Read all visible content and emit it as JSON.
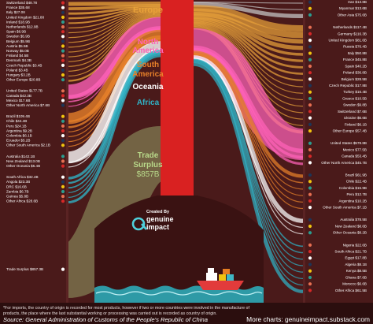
{
  "chart_data": {
    "type": "sankey",
    "title": "Trade Surplus $857B",
    "unit": "$B",
    "surplus": {
      "label_line1": "Trade",
      "label_line2": "Surplus",
      "label_line3": "$857B",
      "value": 857.3
    },
    "brand": {
      "line1": "Created By",
      "line2": "genuine",
      "line3": "impact"
    },
    "regions": [
      {
        "name": "Europe",
        "color": "#e8a13a"
      },
      {
        "name": "North America",
        "color": "#ff62b8"
      },
      {
        "name": "South America",
        "color": "#e8812a"
      },
      {
        "name": "Oceania",
        "color": "#ffffff"
      },
      {
        "name": "Africa",
        "color": "#2fb3c6"
      }
    ],
    "imports": [
      {
        "country": "Switzerland",
        "value": "$48.78",
        "region": 0
      },
      {
        "country": "France",
        "value": "$35.68",
        "region": 0
      },
      {
        "country": "Italy",
        "value": "$27.08",
        "region": 0
      },
      {
        "country": "United Kingdom",
        "value": "$21.88",
        "region": 0
      },
      {
        "country": "Ireland",
        "value": "$18.9B",
        "region": 0
      },
      {
        "country": "Netherlands",
        "value": "$12.9B",
        "region": 0
      },
      {
        "country": "Spain",
        "value": "$6.9B",
        "region": 0
      },
      {
        "country": "Sweden",
        "value": "$5.9B",
        "region": 0
      },
      {
        "country": "Belgium",
        "value": "$5.9B",
        "region": 0
      },
      {
        "country": "Austria",
        "value": "$5.5B",
        "region": 0
      },
      {
        "country": "Norway",
        "value": "$5.0B",
        "region": 0
      },
      {
        "country": "Finland",
        "value": "$4.5B",
        "region": 0
      },
      {
        "country": "Denmark",
        "value": "$4.3B",
        "region": 0
      },
      {
        "country": "Czech Republic",
        "value": "$3.4B",
        "region": 0
      },
      {
        "country": "Poland",
        "value": "$3.4B",
        "region": 0
      },
      {
        "country": "Hungary",
        "value": "$3.2B",
        "region": 0
      },
      {
        "country": "Other Europe",
        "value": "$20.8B",
        "region": 0
      },
      {
        "country": "United States",
        "value": "$177.7B",
        "region": 1
      },
      {
        "country": "Canada",
        "value": "$42.3B",
        "region": 1
      },
      {
        "country": "Mexico",
        "value": "$17.6B",
        "region": 1
      },
      {
        "country": "Other North America",
        "value": "$7.6B",
        "region": 1
      },
      {
        "country": "Brazil",
        "value": "$109.4B",
        "region": 2
      },
      {
        "country": "Chile",
        "value": "$44.4B",
        "region": 2
      },
      {
        "country": "Peru",
        "value": "$24.1B",
        "region": 2
      },
      {
        "country": "Argentina",
        "value": "$9.2B",
        "region": 2
      },
      {
        "country": "Colombia",
        "value": "$6.1B",
        "region": 2
      },
      {
        "country": "Ecuador",
        "value": "$5.2B",
        "region": 2
      },
      {
        "country": "Other South America",
        "value": "$2.1B",
        "region": 2
      },
      {
        "country": "Australia",
        "value": "$142.1B",
        "region": 3
      },
      {
        "country": "New Zealand",
        "value": "$13.0B",
        "region": 3
      },
      {
        "country": "Other Oceania",
        "value": "$5.4B",
        "region": 3
      },
      {
        "country": "South Africa",
        "value": "$32.4B",
        "region": 4
      },
      {
        "country": "Angola",
        "value": "$23.3B",
        "region": 4
      },
      {
        "country": "DRC",
        "value": "$16.6B",
        "region": 4
      },
      {
        "country": "Zambia",
        "value": "$6.7B",
        "region": 4
      },
      {
        "country": "Guinea",
        "value": "$5.8B",
        "region": 4
      },
      {
        "country": "Other Africa",
        "value": "$28.6B",
        "region": 4
      },
      {
        "country": "Trade Surplus",
        "value": "$857.3B",
        "region": -1
      }
    ],
    "exports": [
      {
        "country": "Iran",
        "value": "$13.8B",
        "region": -2
      },
      {
        "country": "Myanmar",
        "value": "$13.6B",
        "region": -2
      },
      {
        "country": "Other Asia",
        "value": "$75.6B",
        "region": -2
      },
      {
        "country": "Netherlands",
        "value": "$117.4B",
        "region": 0
      },
      {
        "country": "Germany",
        "value": "$116.3B",
        "region": 0
      },
      {
        "country": "United Kingdom",
        "value": "$81.6B",
        "region": 0
      },
      {
        "country": "Russia",
        "value": "$76.4B",
        "region": 0
      },
      {
        "country": "Italy",
        "value": "$50.8B",
        "region": 0
      },
      {
        "country": "France",
        "value": "$45.8B",
        "region": 0
      },
      {
        "country": "Spain",
        "value": "$40.2B",
        "region": 0
      },
      {
        "country": "Poland",
        "value": "$36.8B",
        "region": 0
      },
      {
        "country": "Belgium",
        "value": "$28.5B",
        "region": 0
      },
      {
        "country": "Czech Republic",
        "value": "$17.8B",
        "region": 0
      },
      {
        "country": "Turkey",
        "value": "$16.4B",
        "region": 0
      },
      {
        "country": "Greece",
        "value": "$10.5B",
        "region": 0
      },
      {
        "country": "Sweden",
        "value": "$9.8B",
        "region": 0
      },
      {
        "country": "Switzerland",
        "value": "$7.6B",
        "region": 0
      },
      {
        "country": "Ukraine",
        "value": "$6.6B",
        "region": 0
      },
      {
        "country": "Finland",
        "value": "$6.1B",
        "region": 0
      },
      {
        "country": "Other Europe",
        "value": "$57.4B",
        "region": 0
      },
      {
        "country": "United States",
        "value": "$578.8B",
        "region": 1
      },
      {
        "country": "Mexico",
        "value": "$77.5B",
        "region": 1
      },
      {
        "country": "Canada",
        "value": "$53.4B",
        "region": 1
      },
      {
        "country": "Other North America",
        "value": "$45.7B",
        "region": 1
      },
      {
        "country": "Brazil",
        "value": "$61.9B",
        "region": 2
      },
      {
        "country": "Chile",
        "value": "$22.4B",
        "region": 2
      },
      {
        "country": "Colombia",
        "value": "$15.9B",
        "region": 2
      },
      {
        "country": "Peru",
        "value": "$12.7B",
        "region": 2
      },
      {
        "country": "Argentina",
        "value": "$10.2B",
        "region": 2
      },
      {
        "country": "Other South America",
        "value": "$7.1B",
        "region": 2
      },
      {
        "country": "Australia",
        "value": "$78.5B",
        "region": 3
      },
      {
        "country": "New Zealand",
        "value": "$8.6B",
        "region": 3
      },
      {
        "country": "Other Oceania",
        "value": "$8.2B",
        "region": 3
      },
      {
        "country": "Nigeria",
        "value": "$22.6B",
        "region": 4
      },
      {
        "country": "South Africa",
        "value": "$21.7B",
        "region": 4
      },
      {
        "country": "Egypt",
        "value": "$17.8B",
        "region": 4
      },
      {
        "country": "Algeria",
        "value": "$8.1B",
        "region": 4
      },
      {
        "country": "Kenya",
        "value": "$8.5B",
        "region": 4
      },
      {
        "country": "Ghana",
        "value": "$7.6B",
        "region": 4
      },
      {
        "country": "Morocco",
        "value": "$6.6B",
        "region": 4
      },
      {
        "country": "Other Africa",
        "value": "$61.5B",
        "region": 4
      }
    ]
  },
  "footer": {
    "note": "*For imports, the country of origin is recorded for most products, however if two or more countries were involved in the manufacture of products, the place where the last substantial working or processing was carried out is recorded as country of origin.",
    "source": "Source: General Administration of Customs of the People's Republic of China",
    "more": "More charts: genuineimpact.substack.com"
  }
}
